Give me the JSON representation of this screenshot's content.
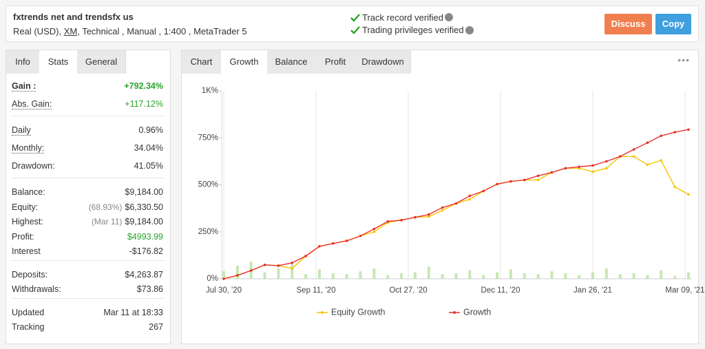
{
  "header": {
    "title": "fxtrends net and trendsfx us",
    "subtitle": [
      "Real (USD),",
      "XM",
      ", Technical , Manual , 1:400 , MetaTrader 5"
    ],
    "verified": [
      "Track record verified",
      "Trading privileges verified"
    ],
    "buttons": [
      {
        "label": "Discuss",
        "color": "#f07f4f"
      },
      {
        "label": "Copy",
        "color": "#3f9fdf"
      }
    ]
  },
  "left_tabs": {
    "items": [
      "Info",
      "Stats",
      "General"
    ],
    "active": 1
  },
  "stats": [
    [
      {
        "label": "Gain :",
        "value": "+792.34%",
        "color": "#2aa32a",
        "dotted": true,
        "bold": true
      },
      {
        "label": "Abs. Gain:",
        "value": "+117.12%",
        "color": "#2aa32a",
        "dotted": true
      }
    ],
    [
      {
        "label": "Daily",
        "value": "0.96%",
        "dotted": true
      },
      {
        "label": "Monthly:",
        "value": "34.04%",
        "dotted": true
      },
      {
        "label": "Drawdown:",
        "value": "41.05%"
      }
    ],
    [
      {
        "label": "Balance:",
        "value": "$9,184.00"
      },
      {
        "label": "Equity:",
        "note": "(68.93%)",
        "value": "$6,330.50"
      },
      {
        "label": "Highest:",
        "note": "(Mar 11)",
        "value": "$9,184.00"
      },
      {
        "label": "Profit:",
        "value": "$4993.99",
        "color": "#2aa32a"
      },
      {
        "label": "Interest",
        "value": "-$176.82"
      }
    ],
    [
      {
        "label": "Deposits:",
        "value": "$4,263.87"
      },
      {
        "label": "Withdrawals:",
        "value": "$73.86"
      }
    ],
    [
      {
        "label": "Updated",
        "value": "Mar 11 at 18:33"
      },
      {
        "label": "Tracking",
        "value": "267"
      }
    ]
  ],
  "right_tabs": {
    "items": [
      "Chart",
      "Growth",
      "Balance",
      "Profit",
      "Drawdown"
    ],
    "active": 1
  },
  "chart_data": {
    "type": "line",
    "ylim": [
      0,
      1000
    ],
    "yticks": [
      {
        "value": 0,
        "label": "0%"
      },
      {
        "value": 250,
        "label": "250%"
      },
      {
        "value": 500,
        "label": "500%"
      },
      {
        "value": 750,
        "label": "750%"
      },
      {
        "value": 1000,
        "label": "1K%"
      }
    ],
    "xticks": [
      "Jul 30, '20",
      "Sep 11, '20",
      "Oct 27, '20",
      "Dec 11, '20",
      "Jan 26, '21",
      "Mar 09, '21"
    ],
    "grid": true,
    "series": [
      {
        "name": "Equity Growth",
        "color": "#f5c400",
        "values": [
          0,
          18,
          44,
          74,
          70,
          55,
          121,
          173,
          188,
          202,
          228,
          250,
          300,
          312,
          327,
          331,
          364,
          401,
          423,
          467,
          504,
          518,
          526,
          526,
          566,
          588,
          588,
          570,
          588,
          651,
          651,
          607,
          630,
          489,
          449
        ]
      },
      {
        "name": "Growth",
        "color": "#e8312a",
        "values": [
          0,
          18,
          44,
          74,
          70,
          85,
          121,
          173,
          188,
          202,
          228,
          265,
          305,
          312,
          327,
          342,
          379,
          401,
          441,
          467,
          504,
          518,
          526,
          548,
          566,
          588,
          596,
          603,
          625,
          651,
          688,
          724,
          761,
          780,
          794
        ]
      }
    ],
    "bars": {
      "color": "#c6e8b4",
      "values": [
        40,
        70,
        90,
        35,
        55,
        80,
        25,
        50,
        30,
        25,
        40,
        55,
        20,
        30,
        35,
        65,
        25,
        30,
        45,
        20,
        35,
        50,
        30,
        25,
        40,
        30,
        20,
        35,
        55,
        25,
        30,
        20,
        45,
        15,
        35
      ]
    }
  }
}
